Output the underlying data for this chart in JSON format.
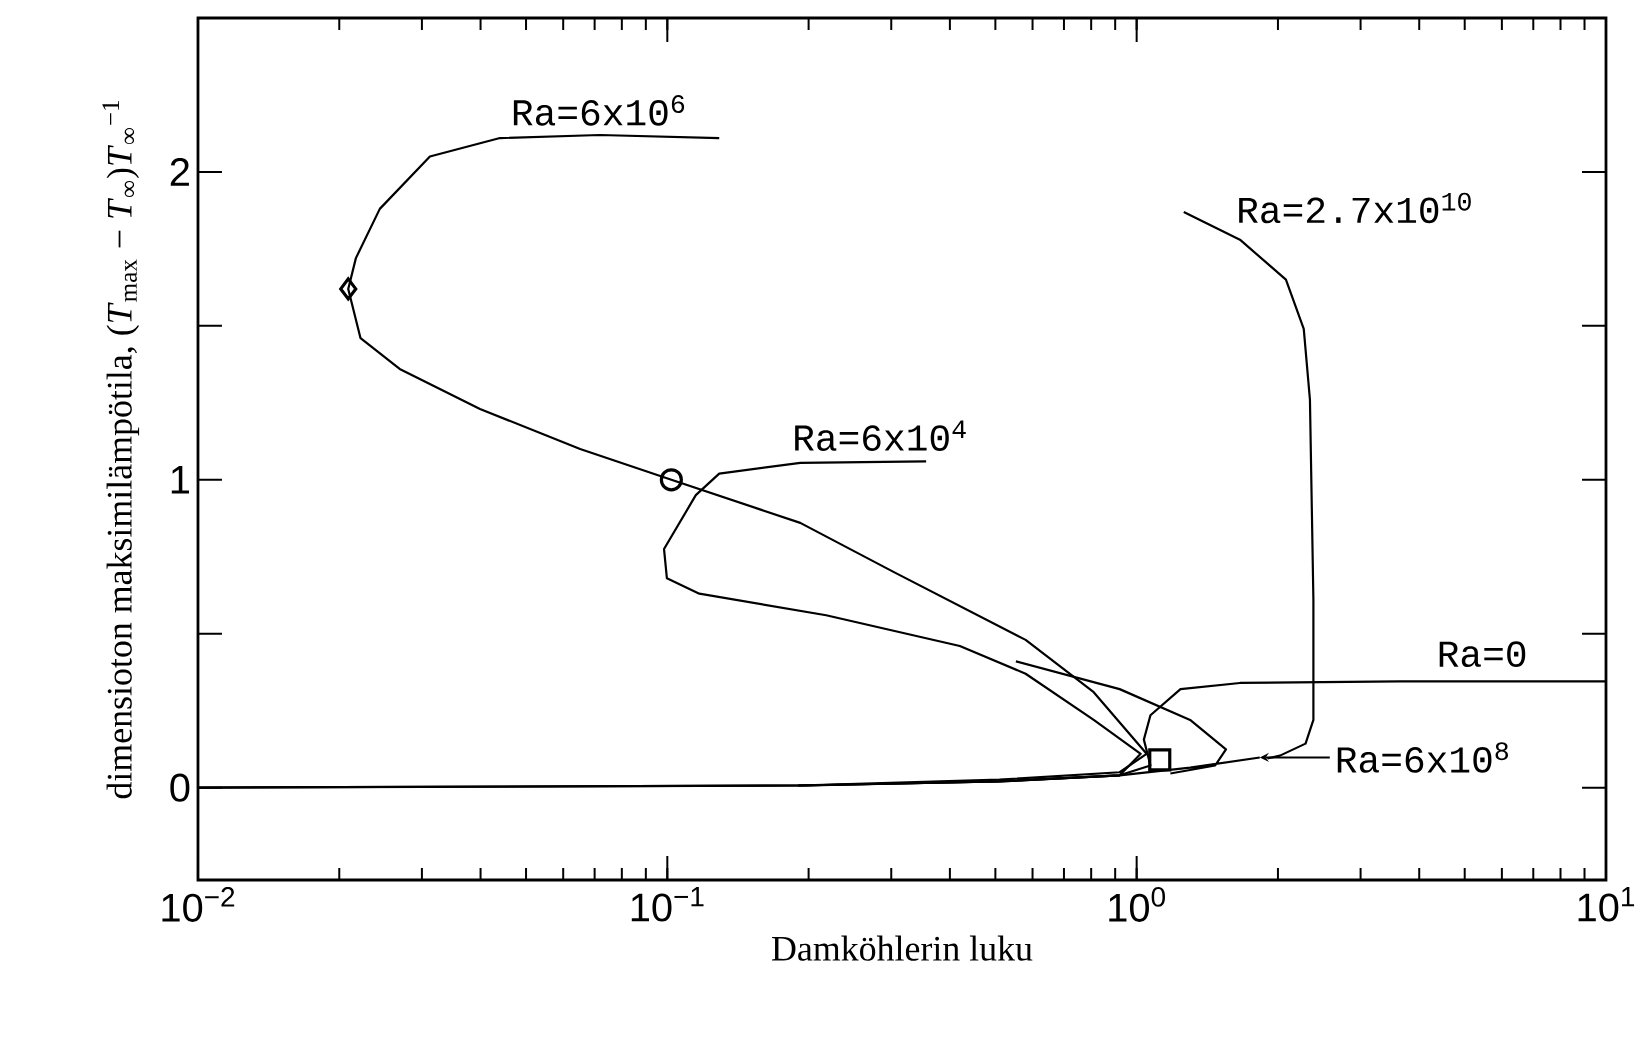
{
  "chart_data": {
    "type": "line",
    "xlabel": "Damköhlerin luku",
    "ylabel": "dimensioton maksimilämpötila, (*T*$_{max}$ − *T*$_{∞}$)*T*$_{∞}$$^{−1}$",
    "log": "x",
    "xlim": [
      0.01,
      10
    ],
    "ylim": [
      -0.3,
      2.5
    ],
    "xticks": [
      {
        "value": 0.01,
        "label": "10$^{−2}$"
      },
      {
        "value": 0.1,
        "label": "10$^{−1}$"
      },
      {
        "value": 1,
        "label": "10$^{0}$"
      },
      {
        "value": 10,
        "label": "10$^{1}$"
      }
    ],
    "yticks": [
      0,
      {
        "value": 0.5,
        "label": null
      },
      1,
      {
        "value": 1.5,
        "label": null
      },
      2
    ],
    "series": [
      {
        "name": "Ra=6x10$^{6}$",
        "color": "#000000",
        "x": [
          0.129,
          0.0718,
          0.044,
          0.0312,
          0.0244,
          0.0217,
          0.0209,
          0.0222,
          0.0269,
          0.0399,
          0.0652,
          0.102,
          0.192,
          0.304,
          0.58,
          0.81,
          1.05,
          0.92,
          0.51,
          0.19
        ],
        "values": [
          2.11,
          2.12,
          2.11,
          2.05,
          1.88,
          1.72,
          1.62,
          1.46,
          1.36,
          1.23,
          1.1,
          1.0,
          0.86,
          0.7,
          0.48,
          0.31,
          0.11,
          0.05,
          0.026,
          0.007
        ]
      },
      {
        "name": "Ra=6x10$^{4}$",
        "color": "#000000",
        "x": [
          0.356,
          0.192,
          0.129,
          0.115,
          0.0984,
          0.0998,
          0.117,
          0.218,
          0.42,
          0.58,
          0.81,
          1.02,
          0.92,
          0.51,
          0.19
        ],
        "values": [
          1.06,
          1.055,
          1.02,
          0.95,
          0.775,
          0.68,
          0.63,
          0.56,
          0.46,
          0.37,
          0.22,
          0.11,
          0.04,
          0.02,
          0.007
        ]
      },
      {
        "name": "Ra=2.7x10$^{10}$",
        "color": "#000000",
        "x": [
          1.26,
          1.66,
          2.08,
          2.27,
          2.34,
          2.38,
          2.38,
          2.29,
          2.02,
          1.9
        ],
        "values": [
          1.87,
          1.78,
          1.65,
          1.49,
          1.26,
          0.61,
          0.22,
          0.143,
          0.104,
          0.095
        ]
      },
      {
        "name": "Ra=0",
        "color": "#000000",
        "x": [
          10,
          3.64,
          1.66,
          1.24,
          1.07,
          1.036,
          1.07,
          0.92,
          0.51,
          0.19,
          0.01
        ],
        "values": [
          0.345,
          0.345,
          0.34,
          0.32,
          0.235,
          0.156,
          0.072,
          0.04,
          0.02,
          0.007,
          0
        ]
      },
      {
        "name": "Ra=6x10$^{8}$",
        "color": "#000000",
        "x": [
          1.83,
          1.3,
          0.92,
          0.5,
          0.2,
          0.01,
          0.3,
          0.553,
          0.92,
          1.3,
          1.55,
          1.47,
          1.18
        ],
        "values": [
          0.098,
          0.065,
          0.04,
          0.02,
          0.007,
          0,
          null,
          0.41,
          0.32,
          0.22,
          0.124,
          0.072,
          0.046
        ]
      },
      {
        "type": "scatter",
        "marker": "diamond",
        "color": "#000000",
        "x": [
          0.0209
        ],
        "values": [
          1.62
        ]
      },
      {
        "type": "scatter",
        "marker": "circle",
        "color": "#000000",
        "x": [
          0.102
        ],
        "values": [
          1.0
        ]
      },
      {
        "type": "scatter",
        "marker": "square",
        "color": "#000000",
        "x": [
          1.12
        ],
        "values": [
          0.09
        ]
      }
    ]
  }
}
